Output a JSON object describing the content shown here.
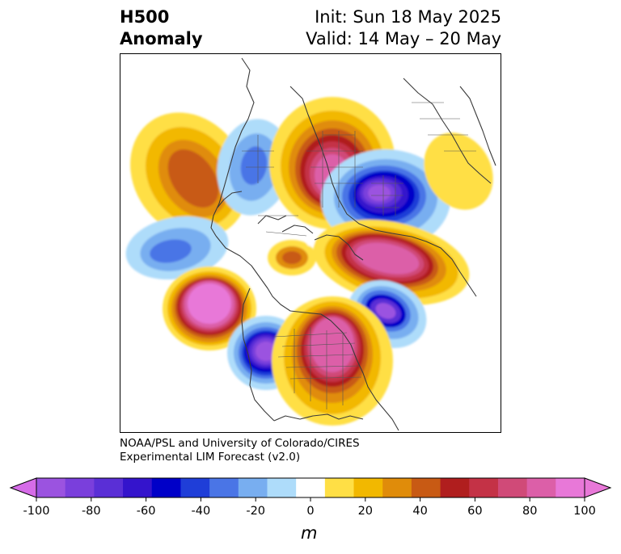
{
  "header": {
    "title_line1": "H500",
    "title_line2": "Anomaly",
    "init_text": "Init: Sun 18 May 2025",
    "valid_text": "Valid: 14 May – 20 May"
  },
  "credit": {
    "line1": "NOAA/PSL and University of Colorado/CIRES",
    "line2": "Experimental LIM Forecast (v2.0)"
  },
  "colorbar": {
    "unit": "m",
    "tick_labels": [
      "-100",
      "-80",
      "-60",
      "-40",
      "-20",
      "0",
      "20",
      "40",
      "60",
      "80",
      "100"
    ],
    "levels": [
      -100,
      -90,
      -80,
      -70,
      -60,
      -50,
      -40,
      -30,
      -20,
      -10,
      10,
      20,
      30,
      40,
      50,
      60,
      70,
      80,
      90,
      100
    ],
    "colors": [
      "#9b53e0",
      "#7a3fdc",
      "#5a2fd6",
      "#3414cc",
      "#0000c8",
      "#1f3ed8",
      "#4a75e6",
      "#78aef0",
      "#aedcfa",
      "#ffffff",
      "#ffdf45",
      "#f2b800",
      "#e08c0a",
      "#c85a14",
      "#b01e1e",
      "#c43246",
      "#d04a78",
      "#dc5fa8",
      "#e878d8"
    ],
    "extend_low_color": "#d66ce8",
    "extend_high_color": "#e878d8"
  }
}
